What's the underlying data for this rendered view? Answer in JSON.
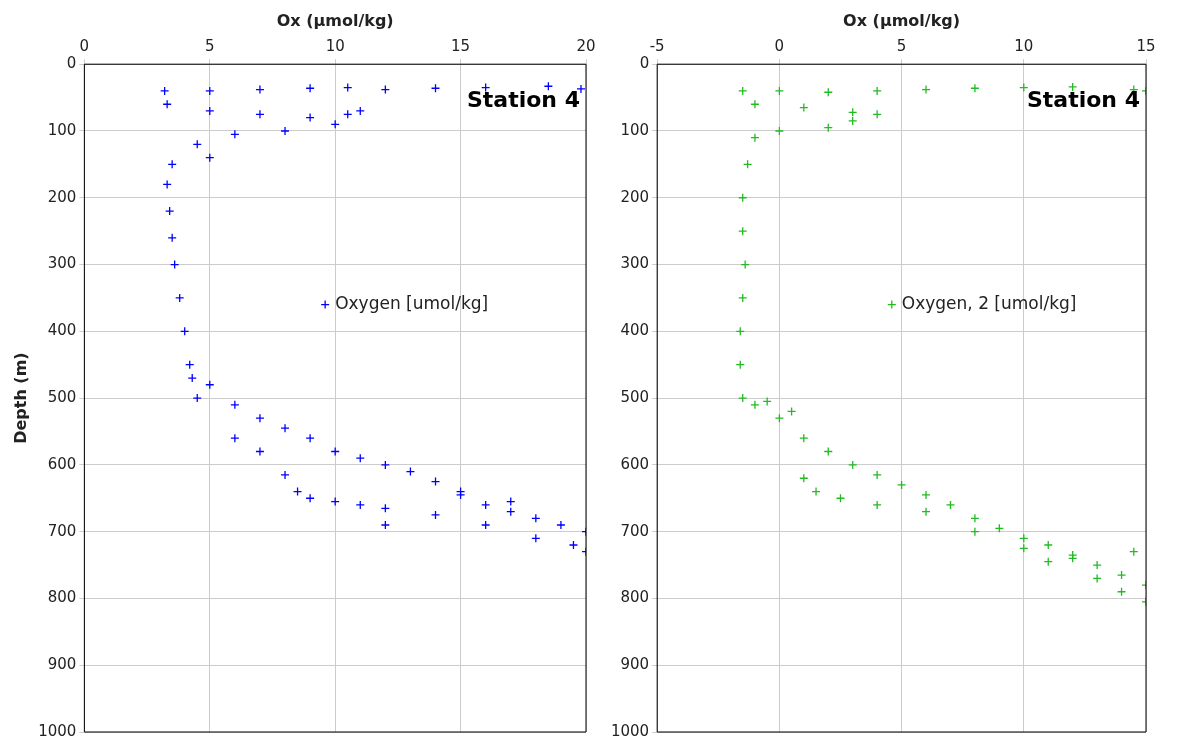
{
  "chart_data": [
    {
      "type": "scatter",
      "xlabel": "Ox (µmol/kg)",
      "ylabel": "Depth (m)",
      "xlim": [
        0,
        20
      ],
      "xticks": [
        0,
        5,
        10,
        15,
        20
      ],
      "ylim": [
        1000,
        0
      ],
      "yticks": [
        0,
        100,
        200,
        300,
        400,
        500,
        600,
        700,
        800,
        900,
        1000
      ],
      "grid": true,
      "marker": "cross",
      "legend": "right",
      "annotations": [
        "Station 4"
      ],
      "series": [
        {
          "name": "Oxygen [umol/kg]",
          "color": "#0000ff",
          "x": [
            3.2,
            5,
            7,
            9,
            10.5,
            12,
            14,
            16,
            18.5,
            19.8,
            3.3,
            5,
            7,
            9,
            10.5,
            11,
            10,
            8,
            6,
            4.5,
            5,
            3.5,
            3.3,
            3.4,
            3.5,
            3.6,
            3.8,
            4,
            4.2,
            4.3,
            5,
            4.5,
            6,
            7,
            8,
            9,
            10,
            11,
            12,
            13,
            14,
            15,
            16,
            17,
            18,
            19,
            20,
            19.5,
            20,
            8,
            8.5,
            9,
            10,
            11,
            12,
            14,
            16,
            18,
            12,
            15,
            17,
            6,
            7
          ],
          "values": [
            40,
            40,
            38,
            36,
            35,
            38,
            36,
            35,
            33,
            37,
            60,
            70,
            75,
            80,
            75,
            70,
            90,
            100,
            105,
            120,
            140,
            150,
            180,
            220,
            260,
            300,
            350,
            400,
            450,
            470,
            480,
            500,
            510,
            530,
            545,
            560,
            580,
            590,
            600,
            610,
            625,
            640,
            660,
            670,
            680,
            690,
            700,
            720,
            730,
            615,
            640,
            650,
            655,
            660,
            665,
            675,
            690,
            710,
            690,
            645,
            655,
            560,
            580
          ]
        }
      ]
    },
    {
      "type": "scatter",
      "xlabel": "Ox (µmol/kg)",
      "xlim": [
        -5,
        15
      ],
      "xticks": [
        -5,
        0,
        5,
        10,
        15
      ],
      "ylim": [
        1000,
        0
      ],
      "yticks": [
        0,
        100,
        200,
        300,
        400,
        500,
        600,
        700,
        800,
        900,
        1000
      ],
      "grid": true,
      "marker": "cross",
      "legend": "right",
      "annotations": [
        "Station 4"
      ],
      "series": [
        {
          "name": "Oxygen, 2 [umol/kg]",
          "color": "#22bb22",
          "x": [
            -1.5,
            0,
            2,
            4,
            6,
            8,
            10,
            12,
            14.5,
            15,
            -1,
            1,
            3,
            4,
            3,
            2,
            0,
            -1,
            -1.3,
            -1.5,
            -1.5,
            -1.4,
            -1.5,
            -1.6,
            -1.6,
            -1.5,
            -1,
            0,
            1,
            2,
            3,
            4,
            5,
            6,
            7,
            8,
            9,
            10,
            11,
            12,
            13,
            14,
            15,
            14,
            15,
            13,
            11,
            1,
            1.5,
            2.5,
            4,
            6,
            8,
            10,
            12,
            14.5,
            0.5,
            -0.5
          ],
          "values": [
            40,
            40,
            42,
            40,
            38,
            36,
            35,
            34,
            38,
            40,
            60,
            65,
            72,
            75,
            85,
            95,
            100,
            110,
            150,
            200,
            250,
            300,
            350,
            400,
            450,
            500,
            510,
            530,
            560,
            580,
            600,
            615,
            630,
            645,
            660,
            680,
            695,
            710,
            720,
            735,
            750,
            765,
            780,
            790,
            805,
            770,
            745,
            620,
            640,
            650,
            660,
            670,
            700,
            725,
            740,
            730,
            520,
            505
          ]
        }
      ]
    }
  ]
}
